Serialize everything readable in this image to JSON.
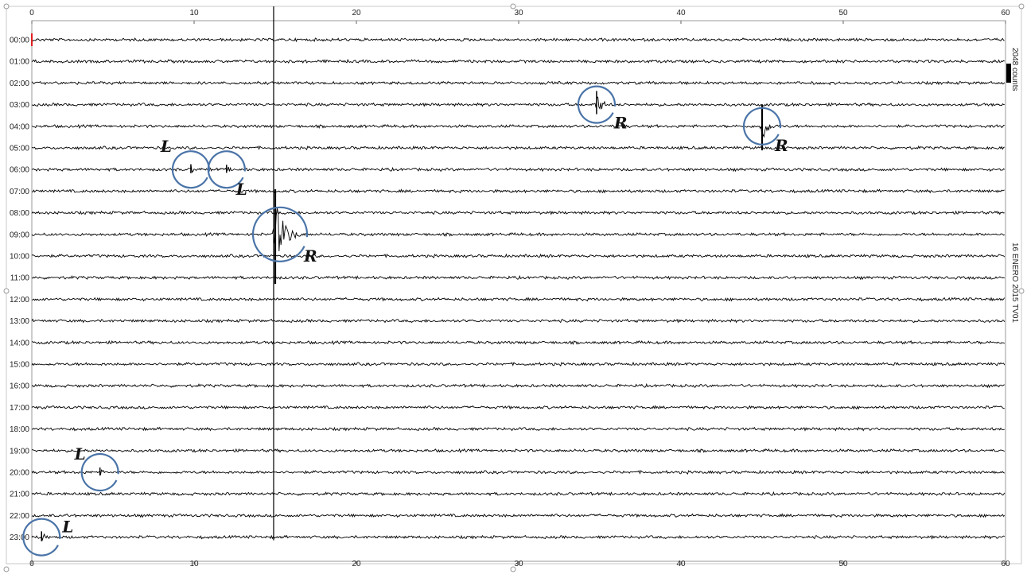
{
  "chart_data": {
    "type": "line",
    "title": "",
    "side_labels": {
      "scale": "2048 counts",
      "station": "16 ENERO 2015 TV01"
    },
    "x_axis": {
      "min": 0,
      "max": 60,
      "ticks": [
        0,
        10,
        20,
        30,
        40,
        50,
        60
      ]
    },
    "hours": [
      "00:00",
      "01:00",
      "02:00",
      "03:00",
      "04:00",
      "05:00",
      "06:00",
      "07:00",
      "08:00",
      "09:00",
      "10:00",
      "11:00",
      "12:00",
      "13:00",
      "14:00",
      "15:00",
      "16:00",
      "17:00",
      "18:00",
      "19:00",
      "20:00",
      "21:00",
      "22:00",
      "23:00"
    ],
    "noise_level": 0.25,
    "events": [
      {
        "row": 6,
        "minute": 9.8,
        "amplitude": 1.0,
        "duration": 0.7,
        "label": "L"
      },
      {
        "row": 6,
        "minute": 12.0,
        "amplitude": 0.9,
        "duration": 0.7,
        "label": "L"
      },
      {
        "row": 9,
        "minute": 15.0,
        "amplitude": 7.0,
        "duration": 1.6,
        "label": "R"
      },
      {
        "row": 3,
        "minute": 34.8,
        "amplitude": 2.6,
        "duration": 1.0,
        "label": "R"
      },
      {
        "row": 4,
        "minute": 45.0,
        "amplitude": 3.4,
        "duration": 1.0,
        "label": "R"
      },
      {
        "row": 20,
        "minute": 4.2,
        "amplitude": 0.9,
        "duration": 0.7,
        "label": "L"
      },
      {
        "row": 23,
        "minute": 0.6,
        "amplitude": 1.1,
        "duration": 0.9,
        "label": "L"
      }
    ],
    "spikes": [
      {
        "minute": 14.9,
        "from_row": 0,
        "to_row": 23
      }
    ],
    "colors": {
      "trace": "#000000",
      "circle": "#4a74a8",
      "start_marker": "#e02020"
    }
  }
}
